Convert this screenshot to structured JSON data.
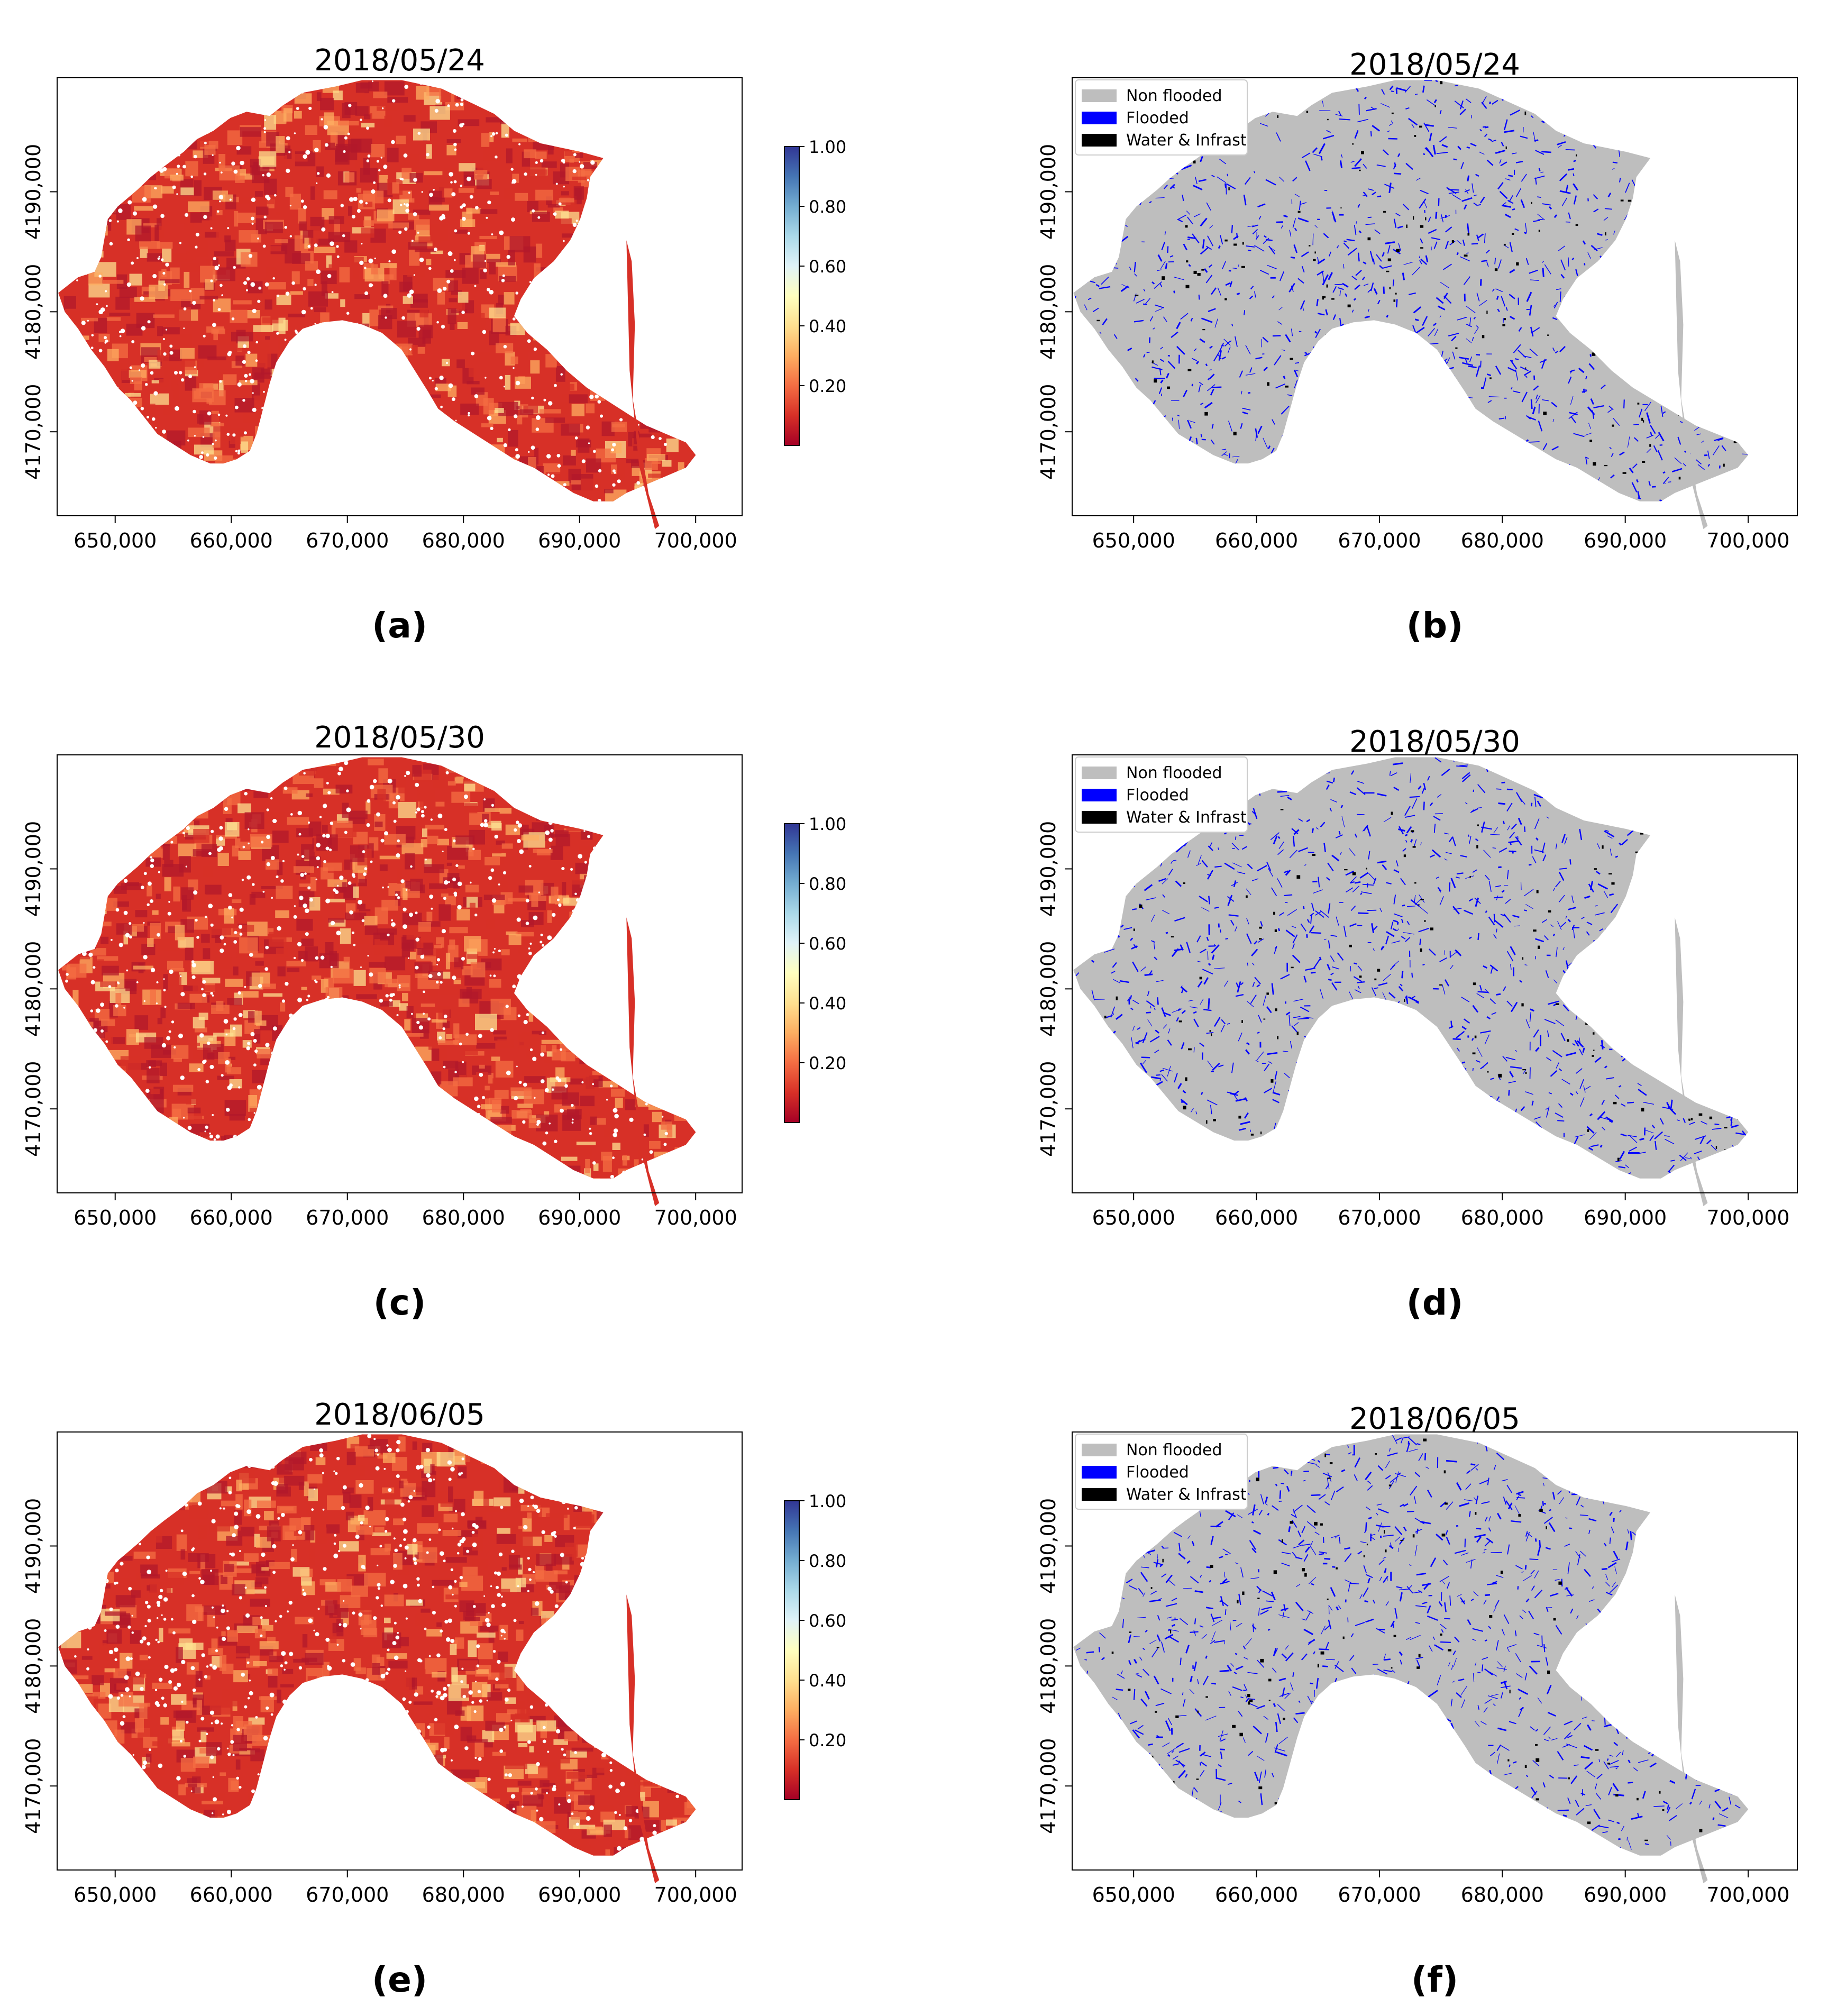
{
  "colors": {
    "frame": "#000000",
    "map_red_dark": "#b2182b",
    "map_red": "#d73027",
    "map_orange": "#f46d43",
    "map_light_orange": "#fdae61",
    "map_yellow": "#fee090",
    "non_flooded": "#bebebe",
    "flooded": "#0000ff",
    "water_infrast": "#000000",
    "colorbar_stops": [
      "#a50026",
      "#d73027",
      "#f46d43",
      "#fdae61",
      "#fee090",
      "#ffffbf",
      "#e0f3f8",
      "#abd9e9",
      "#74add1",
      "#4575b4",
      "#313695"
    ]
  },
  "chart_data": [
    {
      "id": "a",
      "type": "heatmap",
      "panel_label": "(a)",
      "title": "2018/05/24",
      "x_ticks": [
        650000,
        660000,
        670000,
        680000,
        690000,
        700000
      ],
      "x_tick_labels": [
        "650,000",
        "660,000",
        "670,000",
        "680,000",
        "690,000",
        "700,000"
      ],
      "xlim": [
        645000,
        704000
      ],
      "y_ticks": [
        4170000,
        4180000,
        4190000
      ],
      "y_tick_labels": [
        "4170,000",
        "4180,000",
        "4190,000"
      ],
      "ylim": [
        4163000,
        4199500
      ],
      "colorbar": {
        "range": [
          0,
          1
        ],
        "ticks": [
          0.2,
          0.4,
          0.6,
          0.8,
          1.0
        ],
        "tick_labels": [
          "0.20",
          "0.40",
          "0.60",
          "0.80",
          "1.00"
        ],
        "colormap": "RdYlBu"
      },
      "dominant_value_range": [
        0.0,
        0.3
      ]
    },
    {
      "id": "b",
      "type": "heatmap",
      "panel_label": "(b)",
      "title": "2018/05/24",
      "x_ticks": [
        650000,
        660000,
        670000,
        680000,
        690000,
        700000
      ],
      "x_tick_labels": [
        "650,000",
        "660,000",
        "670,000",
        "680,000",
        "690,000",
        "700,000"
      ],
      "xlim": [
        645000,
        704000
      ],
      "y_ticks": [
        4170000,
        4180000,
        4190000
      ],
      "y_tick_labels": [
        "4170,000",
        "4180,000",
        "4190,000"
      ],
      "ylim": [
        4163000,
        4199500
      ],
      "legend": {
        "placement": "top-left",
        "entries": [
          "Non flooded",
          "Flooded",
          "Water & Infrast"
        ]
      },
      "classes": [
        "Non flooded",
        "Flooded",
        "Water & Infrast"
      ]
    },
    {
      "id": "c",
      "type": "heatmap",
      "panel_label": "(c)",
      "title": "2018/05/30",
      "x_ticks": [
        650000,
        660000,
        670000,
        680000,
        690000,
        700000
      ],
      "x_tick_labels": [
        "650,000",
        "660,000",
        "670,000",
        "680,000",
        "690,000",
        "700,000"
      ],
      "xlim": [
        645000,
        704000
      ],
      "y_ticks": [
        4170000,
        4180000,
        4190000
      ],
      "y_tick_labels": [
        "4170,000",
        "4180,000",
        "4190,000"
      ],
      "ylim": [
        4163000,
        4199500
      ],
      "colorbar": {
        "range": [
          0,
          1
        ],
        "ticks": [
          0.2,
          0.4,
          0.6,
          0.8,
          1.0
        ],
        "tick_labels": [
          "0.20",
          "0.40",
          "0.60",
          "0.80",
          "1.00"
        ],
        "colormap": "RdYlBu"
      },
      "dominant_value_range": [
        0.0,
        0.3
      ]
    },
    {
      "id": "d",
      "type": "heatmap",
      "panel_label": "(d)",
      "title": "2018/05/30",
      "x_ticks": [
        650000,
        660000,
        670000,
        680000,
        690000,
        700000
      ],
      "x_tick_labels": [
        "650,000",
        "660,000",
        "670,000",
        "680,000",
        "690,000",
        "700,000"
      ],
      "xlim": [
        645000,
        704000
      ],
      "y_ticks": [
        4170000,
        4180000,
        4190000
      ],
      "y_tick_labels": [
        "4170,000",
        "4180,000",
        "4190,000"
      ],
      "ylim": [
        4163000,
        4199500
      ],
      "legend": {
        "placement": "top-left",
        "entries": [
          "Non flooded",
          "Flooded",
          "Water & Infrast"
        ]
      },
      "classes": [
        "Non flooded",
        "Flooded",
        "Water & Infrast"
      ]
    },
    {
      "id": "e",
      "type": "heatmap",
      "panel_label": "(e)",
      "title": "2018/06/05",
      "x_ticks": [
        650000,
        660000,
        670000,
        680000,
        690000,
        700000
      ],
      "x_tick_labels": [
        "650,000",
        "660,000",
        "670,000",
        "680,000",
        "690,000",
        "700,000"
      ],
      "xlim": [
        645000,
        704000
      ],
      "y_ticks": [
        4170000,
        4180000,
        4190000
      ],
      "y_tick_labels": [
        "4170,000",
        "4180,000",
        "4190,000"
      ],
      "ylim": [
        4163000,
        4199500
      ],
      "colorbar": {
        "range": [
          0,
          1
        ],
        "ticks": [
          0.2,
          0.4,
          0.6,
          0.8,
          1.0
        ],
        "tick_labels": [
          "0.20",
          "0.40",
          "0.60",
          "0.80",
          "1.00"
        ],
        "colormap": "RdYlBu"
      },
      "dominant_value_range": [
        0.0,
        0.3
      ]
    },
    {
      "id": "f",
      "type": "heatmap",
      "panel_label": "(f)",
      "title": "2018/06/05",
      "x_ticks": [
        650000,
        660000,
        670000,
        680000,
        690000,
        700000
      ],
      "x_tick_labels": [
        "650,000",
        "660,000",
        "670,000",
        "680,000",
        "690,000",
        "700,000"
      ],
      "xlim": [
        645000,
        704000
      ],
      "y_ticks": [
        4170000,
        4180000,
        4190000
      ],
      "y_tick_labels": [
        "4170,000",
        "4180,000",
        "4190,000"
      ],
      "ylim": [
        4163000,
        4199500
      ],
      "legend": {
        "placement": "top-left",
        "entries": [
          "Non flooded",
          "Flooded",
          "Water & Infrast"
        ]
      },
      "classes": [
        "Non flooded",
        "Flooded",
        "Water & Infrast"
      ]
    }
  ]
}
